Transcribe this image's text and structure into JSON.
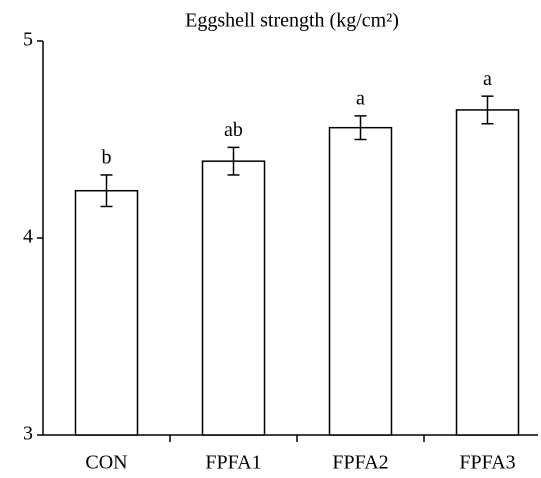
{
  "chart_data": {
    "type": "bar",
    "title": "Eggshell strength (kg/cm²)",
    "categories": [
      "CON",
      "FPFA1",
      "FPFA2",
      "FPFA3"
    ],
    "values": [
      4.24,
      4.39,
      4.56,
      4.65
    ],
    "errors": [
      0.08,
      0.07,
      0.06,
      0.07
    ],
    "labels": [
      "b",
      "ab",
      "a",
      "a"
    ],
    "color": "#ffffff",
    "ylim": [
      3,
      5
    ],
    "yticks": [
      3,
      4,
      5
    ],
    "grid": false
  }
}
